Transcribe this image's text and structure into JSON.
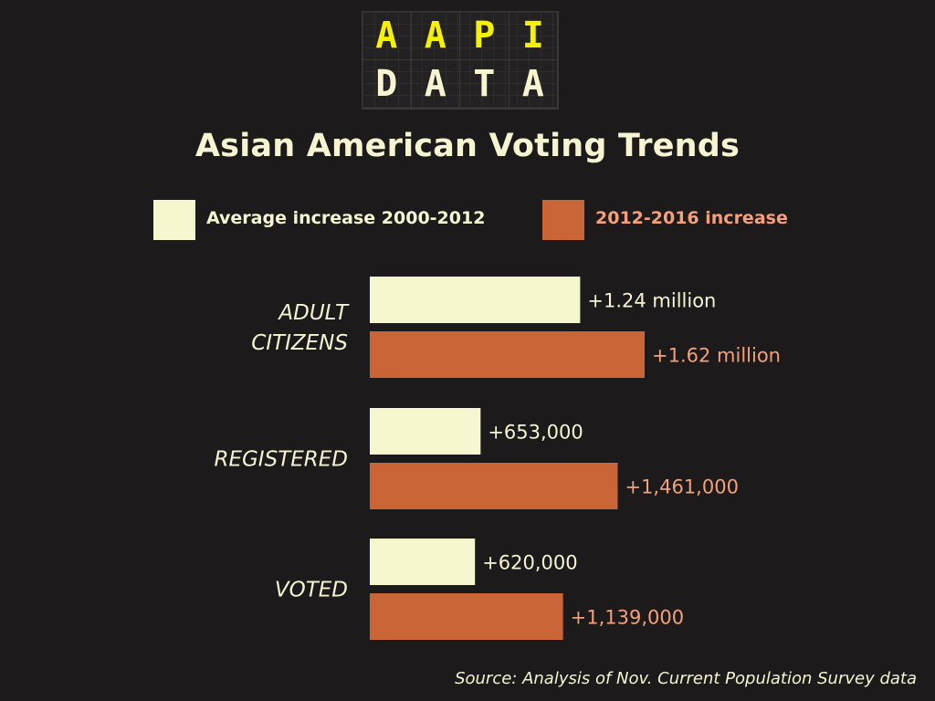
{
  "logo": {
    "row1": [
      "A",
      "A",
      "P",
      "I"
    ],
    "row2": [
      "D",
      "A",
      "T",
      "A"
    ]
  },
  "colors": {
    "background": "#1c1a1b",
    "text": "#f7f4d2",
    "series_avg": "#f6f6cf",
    "series_recent": "#c96536",
    "recent_label": "#f4a07a",
    "logo_yellow": "#f4f200"
  },
  "chart_data": {
    "type": "bar",
    "orientation": "horizontal",
    "title": "Asian American Voting Trends",
    "categories": [
      "ADULT CITIZENS",
      "REGISTERED",
      "VOTED"
    ],
    "category_lines": [
      [
        "ADULT",
        "CITIZENS"
      ],
      [
        "REGISTERED"
      ],
      [
        "VOTED"
      ]
    ],
    "series": [
      {
        "name": "Average increase 2000-2012",
        "values": [
          1240000,
          653000,
          620000
        ],
        "labels": [
          "+1.24 million",
          "+653,000",
          "+620,000"
        ]
      },
      {
        "name": "2012-2016 increase",
        "values": [
          1620000,
          1461000,
          1139000
        ],
        "labels": [
          "+1.62 million",
          "+1,461,000",
          "+1,139,000"
        ]
      }
    ],
    "xlim": [
      0,
      1620000
    ],
    "grid": false,
    "legend_position": "top",
    "source": "Source: Analysis of Nov. Current Population Survey data"
  }
}
